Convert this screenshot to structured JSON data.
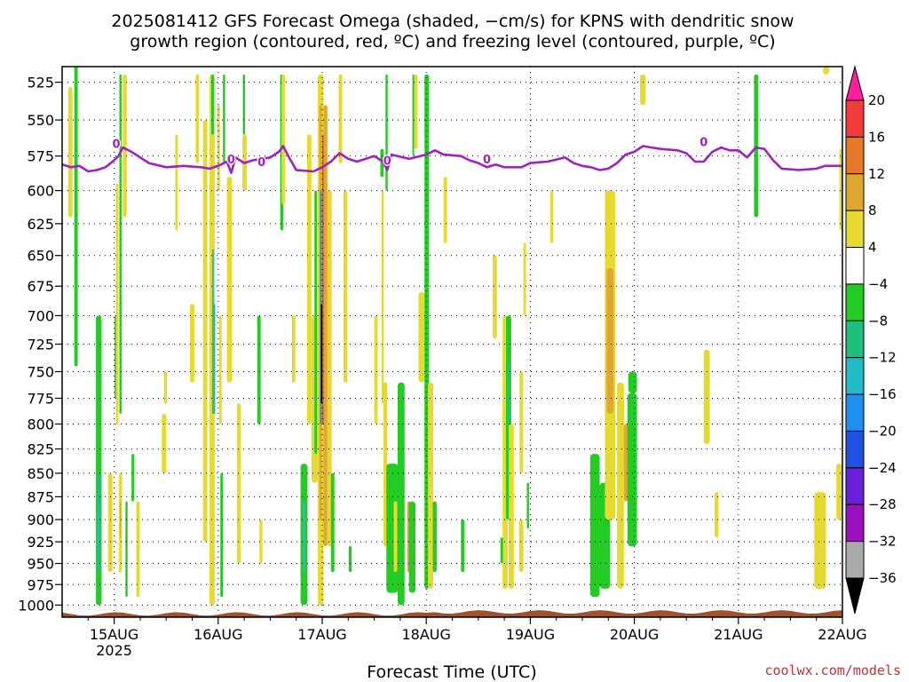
{
  "chart_data": {
    "type": "heatmap",
    "title_lines": [
      "2025081412 GFS Forecast Omega (shaded, −cm/s) for KPNS with dendritic snow",
      "growth region (contoured, red, ºC) and freezing level (contoured, purple, ºC)"
    ],
    "xlabel": "Forecast Time (UTC)",
    "x_ticks": [
      {
        "label": "15AUG",
        "sub": "2025",
        "t": 24
      },
      {
        "label": "16AUG",
        "sub": "",
        "t": 48
      },
      {
        "label": "17AUG",
        "sub": "",
        "t": 72
      },
      {
        "label": "18AUG",
        "sub": "",
        "t": 96
      },
      {
        "label": "19AUG",
        "sub": "",
        "t": 120
      },
      {
        "label": "20AUG",
        "sub": "",
        "t": 144
      },
      {
        "label": "21AUG",
        "sub": "",
        "t": 168
      },
      {
        "label": "22AUG",
        "sub": "",
        "t": 192
      }
    ],
    "xlim": [
      12,
      192
    ],
    "y_ticks": [
      525,
      550,
      575,
      600,
      625,
      650,
      675,
      700,
      725,
      750,
      775,
      800,
      825,
      850,
      875,
      900,
      925,
      950,
      975,
      1000
    ],
    "ylim": [
      1015,
      515
    ],
    "y_scale": "log",
    "grid": true,
    "colorbar": {
      "labels": [
        "20",
        "16",
        "12",
        "8",
        "4",
        "−4",
        "−8",
        "−12",
        "−16",
        "−20",
        "−24",
        "−28",
        "−32",
        "−36"
      ],
      "colors": [
        "#ff1f9e",
        "#f23c3c",
        "#e8782a",
        "#e0a830",
        "#e6da30",
        "#ffffff",
        "#22cc22",
        "#1fbf80",
        "#22bcc8",
        "#1e90f0",
        "#2050e0",
        "#6820d8",
        "#9c10c0",
        "#aaaaaa",
        "#000000"
      ]
    },
    "freezing_level": {
      "color": "#a020c0",
      "contour_label": "0",
      "points": [
        [
          12,
          581
        ],
        [
          14,
          583
        ],
        [
          16,
          582
        ],
        [
          18,
          586
        ],
        [
          20,
          585
        ],
        [
          22,
          583
        ],
        [
          24,
          578
        ],
        [
          25,
          575
        ],
        [
          26,
          569
        ],
        [
          28,
          572
        ],
        [
          30,
          576
        ],
        [
          32,
          580
        ],
        [
          36,
          583
        ],
        [
          40,
          582
        ],
        [
          44,
          583
        ],
        [
          46,
          584
        ],
        [
          48,
          582
        ],
        [
          50,
          579
        ],
        [
          51,
          587
        ],
        [
          52,
          576
        ],
        [
          54,
          580
        ],
        [
          56,
          578
        ],
        [
          60,
          576
        ],
        [
          62,
          572
        ],
        [
          63,
          568
        ],
        [
          64,
          574
        ],
        [
          66,
          585
        ],
        [
          70,
          586
        ],
        [
          72,
          583
        ],
        [
          74,
          579
        ],
        [
          76,
          573
        ],
        [
          78,
          577
        ],
        [
          80,
          579
        ],
        [
          84,
          575
        ],
        [
          86,
          579
        ],
        [
          87,
          585
        ],
        [
          88,
          574
        ],
        [
          92,
          577
        ],
        [
          96,
          574
        ],
        [
          98,
          571
        ],
        [
          100,
          574
        ],
        [
          104,
          575
        ],
        [
          106,
          578
        ],
        [
          108,
          580
        ],
        [
          110,
          583
        ],
        [
          112,
          581
        ],
        [
          114,
          583
        ],
        [
          118,
          583
        ],
        [
          120,
          580
        ],
        [
          124,
          579
        ],
        [
          128,
          576
        ],
        [
          130,
          580
        ],
        [
          132,
          582
        ],
        [
          134,
          583
        ],
        [
          136,
          585
        ],
        [
          138,
          584
        ],
        [
          140,
          580
        ],
        [
          142,
          574
        ],
        [
          144,
          572
        ],
        [
          146,
          568
        ],
        [
          148,
          569
        ],
        [
          150,
          570
        ],
        [
          154,
          571
        ],
        [
          156,
          573
        ],
        [
          158,
          579
        ],
        [
          160,
          579
        ],
        [
          162,
          572
        ],
        [
          164,
          569
        ],
        [
          166,
          571
        ],
        [
          168,
          571
        ],
        [
          170,
          576
        ],
        [
          172,
          569
        ],
        [
          174,
          570
        ],
        [
          176,
          578
        ],
        [
          178,
          584
        ],
        [
          182,
          585
        ],
        [
          186,
          584
        ],
        [
          188,
          582
        ],
        [
          192,
          582
        ]
      ],
      "label_at": [
        [
          24.5,
          566
        ],
        [
          51,
          577
        ],
        [
          58,
          579
        ],
        [
          87,
          578
        ],
        [
          110,
          577
        ],
        [
          160,
          565
        ]
      ]
    },
    "shading": [
      {
        "v": "green",
        "t0": 14.8,
        "t1": 15.6,
        "p0": 515,
        "p1": 745
      },
      {
        "v": "yellow",
        "t0": 13.4,
        "t1": 14.4,
        "p0": 528,
        "p1": 620
      },
      {
        "v": "green",
        "t0": 19.8,
        "t1": 21.1,
        "p0": 700,
        "p1": 1000
      },
      {
        "v": "teal",
        "t0": 20.1,
        "t1": 20.8,
        "p0": 850,
        "p1": 960
      },
      {
        "v": "cyan",
        "t0": 20.3,
        "t1": 20.6,
        "p0": 885,
        "p1": 935
      },
      {
        "v": "yellow",
        "t0": 22.6,
        "t1": 23.6,
        "p0": 850,
        "p1": 960
      },
      {
        "v": "green",
        "t0": 24.1,
        "t1": 24.5,
        "p0": 700,
        "p1": 775
      },
      {
        "v": "yellow",
        "t0": 24.4,
        "t1": 25.0,
        "p0": 595,
        "p1": 800
      },
      {
        "v": "green",
        "t0": 25.2,
        "t1": 25.7,
        "p0": 520,
        "p1": 790
      },
      {
        "v": "yellow",
        "t0": 25.1,
        "t1": 25.8,
        "p0": 850,
        "p1": 960
      },
      {
        "v": "orange",
        "t0": 25.3,
        "t1": 25.6,
        "p0": 880,
        "p1": 920
      },
      {
        "v": "yellow",
        "t0": 26.0,
        "t1": 26.9,
        "p0": 520,
        "p1": 620
      },
      {
        "v": "green",
        "t0": 26.6,
        "t1": 27.1,
        "p0": 880,
        "p1": 990
      },
      {
        "v": "green",
        "t0": 28.0,
        "t1": 28.6,
        "p0": 830,
        "p1": 880
      },
      {
        "v": "yellow",
        "t0": 29.1,
        "t1": 29.9,
        "p0": 880,
        "p1": 990
      },
      {
        "v": "yellow",
        "t0": 35.0,
        "t1": 36.0,
        "p0": 790,
        "p1": 850
      },
      {
        "v": "yellow",
        "t0": 35.5,
        "t1": 36.2,
        "p0": 750,
        "p1": 780
      },
      {
        "v": "yellow",
        "t0": 38.1,
        "t1": 38.7,
        "p0": 560,
        "p1": 630
      },
      {
        "v": "yellow",
        "t0": 41.5,
        "t1": 42.5,
        "p0": 690,
        "p1": 760
      },
      {
        "v": "yellow",
        "t0": 42.8,
        "t1": 43.6,
        "p0": 520,
        "p1": 580
      },
      {
        "v": "yellow",
        "t0": 44.5,
        "t1": 45.5,
        "p0": 550,
        "p1": 925
      },
      {
        "v": "yellow",
        "t0": 46.0,
        "t1": 47.2,
        "p0": 520,
        "p1": 1000
      },
      {
        "v": "green",
        "t0": 46.4,
        "t1": 47.0,
        "p0": 520,
        "p1": 560
      },
      {
        "v": "green",
        "t0": 46.7,
        "t1": 47.3,
        "p0": 690,
        "p1": 790
      },
      {
        "v": "cyan",
        "t0": 46.6,
        "t1": 47.0,
        "p0": 645,
        "p1": 790
      },
      {
        "v": "yellow",
        "t0": 47.8,
        "t1": 48.4,
        "p0": 540,
        "p1": 600
      },
      {
        "v": "yellow",
        "t0": 48.2,
        "t1": 48.8,
        "p0": 700,
        "p1": 800
      },
      {
        "v": "green",
        "t0": 48.5,
        "t1": 49.1,
        "p0": 850,
        "p1": 990
      },
      {
        "v": "green",
        "t0": 49.1,
        "t1": 49.6,
        "p0": 520,
        "p1": 580
      },
      {
        "v": "yellow",
        "t0": 50.0,
        "t1": 51.2,
        "p0": 590,
        "p1": 760
      },
      {
        "v": "yellow",
        "t0": 52.3,
        "t1": 53.2,
        "p0": 780,
        "p1": 950
      },
      {
        "v": "green",
        "t0": 53.7,
        "t1": 54.2,
        "p0": 520,
        "p1": 560
      },
      {
        "v": "yellow",
        "t0": 53.6,
        "t1": 54.6,
        "p0": 560,
        "p1": 600
      },
      {
        "v": "green",
        "t0": 57.0,
        "t1": 57.8,
        "p0": 700,
        "p1": 800
      },
      {
        "v": "yellow",
        "t0": 57.5,
        "t1": 58.2,
        "p0": 900,
        "p1": 950
      },
      {
        "v": "green",
        "t0": 62.3,
        "t1": 63.0,
        "p0": 520,
        "p1": 630
      },
      {
        "v": "yellow",
        "t0": 62.6,
        "t1": 63.4,
        "p0": 520,
        "p1": 610
      },
      {
        "v": "yellow",
        "t0": 65.0,
        "t1": 65.8,
        "p0": 700,
        "p1": 760
      },
      {
        "v": "green",
        "t0": 67.0,
        "t1": 68.6,
        "p0": 840,
        "p1": 1000
      },
      {
        "v": "cyan",
        "t0": 67.5,
        "t1": 68.1,
        "p0": 880,
        "p1": 960
      },
      {
        "v": "yellow",
        "t0": 68.5,
        "t1": 69.5,
        "p0": 560,
        "p1": 800
      },
      {
        "v": "yellow",
        "t0": 69.5,
        "t1": 71.0,
        "p0": 700,
        "p1": 860
      },
      {
        "v": "green",
        "t0": 70.2,
        "t1": 70.8,
        "p0": 600,
        "p1": 830
      },
      {
        "v": "yellow",
        "t0": 71.0,
        "t1": 72.3,
        "p0": 520,
        "p1": 1000
      },
      {
        "v": "orange",
        "t0": 71.3,
        "t1": 71.9,
        "p0": 540,
        "p1": 900
      },
      {
        "v": "blue",
        "t0": 71.5,
        "t1": 71.9,
        "p0": 600,
        "p1": 800
      },
      {
        "v": "black",
        "t0": 71.7,
        "t1": 71.9,
        "p0": 690,
        "p1": 780
      },
      {
        "v": "red",
        "t0": 72.0,
        "t1": 72.5,
        "p0": 560,
        "p1": 800
      },
      {
        "v": "orange",
        "t0": 72.3,
        "t1": 73.2,
        "p0": 540,
        "p1": 930
      },
      {
        "v": "yellow",
        "t0": 73.2,
        "t1": 74.2,
        "p0": 600,
        "p1": 930
      },
      {
        "v": "green",
        "t0": 74.0,
        "t1": 74.8,
        "p0": 850,
        "p1": 960
      },
      {
        "v": "yellow",
        "t0": 75.8,
        "t1": 76.6,
        "p0": 520,
        "p1": 580
      },
      {
        "v": "yellow",
        "t0": 76.9,
        "t1": 77.8,
        "p0": 600,
        "p1": 760
      },
      {
        "v": "green",
        "t0": 78.1,
        "t1": 78.8,
        "p0": 930,
        "p1": 960
      },
      {
        "v": "yellow",
        "t0": 84.0,
        "t1": 84.8,
        "p0": 700,
        "p1": 800
      },
      {
        "v": "green",
        "t0": 85.4,
        "t1": 86.2,
        "p0": 570,
        "p1": 590
      },
      {
        "v": "yellow",
        "t0": 85.7,
        "t1": 86.2,
        "p0": 600,
        "p1": 780
      },
      {
        "v": "green",
        "t0": 86.6,
        "t1": 87.1,
        "p0": 520,
        "p1": 600
      },
      {
        "v": "yellow",
        "t0": 86.1,
        "t1": 87.0,
        "p0": 760,
        "p1": 930
      },
      {
        "v": "green",
        "t0": 86.8,
        "t1": 89.5,
        "p0": 840,
        "p1": 985
      },
      {
        "v": "yellow",
        "t0": 88.5,
        "t1": 89.3,
        "p0": 880,
        "p1": 960
      },
      {
        "v": "green",
        "t0": 89.4,
        "t1": 91.0,
        "p0": 760,
        "p1": 1000
      },
      {
        "v": "orange",
        "t0": 91.6,
        "t1": 92.4,
        "p0": 880,
        "p1": 960
      },
      {
        "v": "green",
        "t0": 92.0,
        "t1": 93.5,
        "p0": 880,
        "p1": 985
      },
      {
        "v": "yellow",
        "t0": 93.2,
        "t1": 94.0,
        "p0": 520,
        "p1": 570
      },
      {
        "v": "green",
        "t0": 92.8,
        "t1": 93.2,
        "p0": 520,
        "p1": 575
      },
      {
        "v": "yellow",
        "t0": 94.2,
        "t1": 95.7,
        "p0": 680,
        "p1": 760
      },
      {
        "v": "green",
        "t0": 95.6,
        "t1": 96.6,
        "p0": 520,
        "p1": 980
      },
      {
        "v": "yellow",
        "t0": 96.4,
        "t1": 97.6,
        "p0": 760,
        "p1": 980
      },
      {
        "v": "green",
        "t0": 97.5,
        "t1": 98.4,
        "p0": 880,
        "p1": 960
      },
      {
        "v": "yellow",
        "t0": 100.0,
        "t1": 100.8,
        "p0": 590,
        "p1": 640
      },
      {
        "v": "green",
        "t0": 104.0,
        "t1": 104.8,
        "p0": 900,
        "p1": 960
      },
      {
        "v": "yellow",
        "t0": 111.3,
        "t1": 112.3,
        "p0": 650,
        "p1": 720
      },
      {
        "v": "yellow",
        "t0": 113.6,
        "t1": 114.8,
        "p0": 700,
        "p1": 980
      },
      {
        "v": "green",
        "t0": 114.4,
        "t1": 115.6,
        "p0": 700,
        "p1": 900
      },
      {
        "v": "teal",
        "t0": 114.9,
        "t1": 115.3,
        "p0": 740,
        "p1": 800
      },
      {
        "v": "yellow",
        "t0": 115.0,
        "t1": 116.2,
        "p0": 800,
        "p1": 980
      },
      {
        "v": "yellow",
        "t0": 117.5,
        "t1": 118.3,
        "p0": 750,
        "p1": 850
      },
      {
        "v": "green",
        "t0": 119.2,
        "t1": 119.7,
        "p0": 860,
        "p1": 910
      },
      {
        "v": "green",
        "t0": 113.1,
        "t1": 113.7,
        "p0": 920,
        "p1": 950
      },
      {
        "v": "yellow",
        "t0": 117.4,
        "t1": 118.4,
        "p0": 900,
        "p1": 960
      },
      {
        "v": "yellow",
        "t0": 118.4,
        "t1": 119.0,
        "p0": 640,
        "p1": 700
      },
      {
        "v": "yellow",
        "t0": 124.6,
        "t1": 125.3,
        "p0": 600,
        "p1": 640
      },
      {
        "v": "green",
        "t0": 133.8,
        "t1": 136.0,
        "p0": 830,
        "p1": 990
      },
      {
        "v": "green",
        "t0": 136.0,
        "t1": 138.4,
        "p0": 860,
        "p1": 980
      },
      {
        "v": "yellow",
        "t0": 137.2,
        "t1": 139.6,
        "p0": 600,
        "p1": 900
      },
      {
        "v": "orange",
        "t0": 137.6,
        "t1": 139.2,
        "p0": 660,
        "p1": 790
      },
      {
        "v": "orange",
        "t0": 140.4,
        "t1": 141.6,
        "p0": 770,
        "p1": 850
      },
      {
        "v": "yellow",
        "t0": 140.0,
        "t1": 141.6,
        "p0": 760,
        "p1": 980
      },
      {
        "v": "orange",
        "t0": 141.6,
        "t1": 142.6,
        "p0": 800,
        "p1": 880
      },
      {
        "v": "green",
        "t0": 142.4,
        "t1": 144.6,
        "p0": 770,
        "p1": 930
      },
      {
        "v": "green",
        "t0": 142.6,
        "t1": 144.6,
        "p0": 750,
        "p1": 770
      },
      {
        "v": "yellow",
        "t0": 145.3,
        "t1": 146.6,
        "p0": 520,
        "p1": 540
      },
      {
        "v": "yellow",
        "t0": 160.0,
        "t1": 161.4,
        "p0": 730,
        "p1": 820
      },
      {
        "v": "yellow",
        "t0": 162.5,
        "t1": 163.4,
        "p0": 870,
        "p1": 920
      },
      {
        "v": "green",
        "t0": 171.6,
        "t1": 172.6,
        "p0": 520,
        "p1": 620
      },
      {
        "v": "yellow",
        "t0": 185.5,
        "t1": 188.2,
        "p0": 870,
        "p1": 980
      },
      {
        "v": "yellow",
        "t0": 190.6,
        "t1": 191.8,
        "p0": 840,
        "p1": 900
      },
      {
        "v": "yellow",
        "t0": 191.3,
        "t1": 192.0,
        "p0": 570,
        "p1": 630
      },
      {
        "v": "yellow",
        "t0": 187.5,
        "t1": 189.0,
        "p0": 515,
        "p1": 520
      }
    ],
    "terrain_color": "#a0522d"
  },
  "credit": "coolwx.com/models"
}
